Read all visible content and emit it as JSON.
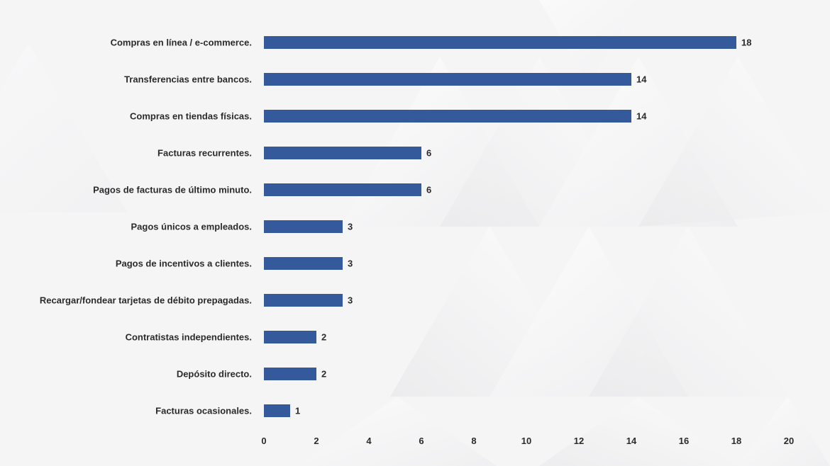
{
  "chart_data": {
    "type": "bar",
    "orientation": "horizontal",
    "title": "",
    "xlabel": "",
    "ylabel": "",
    "categories": [
      "Compras en línea / e-commerce.",
      "Transferencias entre bancos.",
      "Compras en tiendas físicas.",
      "Facturas recurrentes.",
      "Pagos de facturas de último minuto.",
      "Pagos únicos a empleados.",
      "Pagos de incentivos a clientes.",
      "Recargar/fondear tarjetas de débito prepagadas.",
      "Contratistas independientes.",
      "Depósito directo.",
      "Facturas ocasionales."
    ],
    "values": [
      18,
      14,
      14,
      6,
      6,
      3,
      3,
      3,
      2,
      2,
      1
    ],
    "value_labels": [
      "18",
      "14",
      "14",
      "6",
      "6",
      "3",
      "3",
      "3",
      "2",
      "2",
      "1"
    ],
    "xlim": [
      0,
      20
    ],
    "x_ticks": [
      "0",
      "2",
      "4",
      "6",
      "8",
      "10",
      "12",
      "14",
      "16",
      "18",
      "20"
    ],
    "grid": false,
    "legend": "none",
    "bar_color": "#345a9c"
  }
}
